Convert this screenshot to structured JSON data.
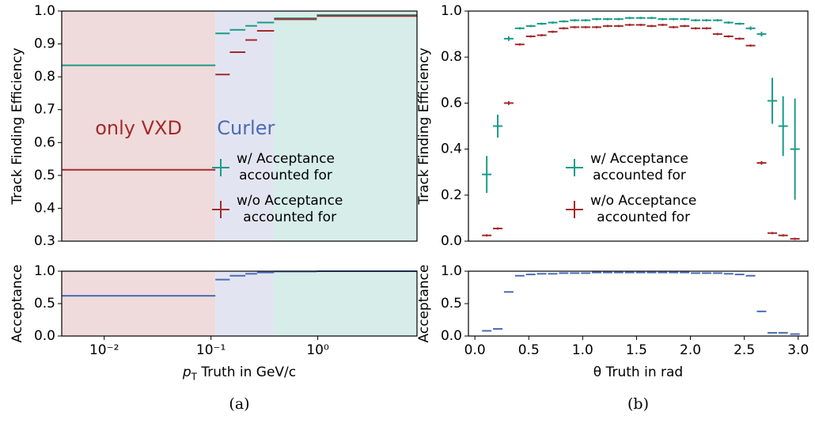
{
  "chart_data": [
    {
      "type": "histogram",
      "xscale": "log",
      "xlim": [
        0.004,
        8.5
      ],
      "ylim": [
        0.3,
        1.0
      ],
      "yticks": [
        0.3,
        0.4,
        0.5,
        0.6,
        0.7,
        0.8,
        0.9,
        {
          "value": 1.0,
          "label": "1.0"
        }
      ],
      "ylabel": "Track Finding Efficiency",
      "bins": [
        0.004,
        0.11,
        0.15,
        0.21,
        0.27,
        0.39,
        0.98,
        8.5
      ],
      "regions": [
        {
          "range": [
            0.004,
            0.11
          ],
          "color": "#efdbdb"
        },
        {
          "range": [
            0.11,
            0.39
          ],
          "color": "#e2e5f1"
        },
        {
          "range": [
            0.39,
            8.5
          ],
          "color": "#d6ede9"
        }
      ],
      "annotations": [
        {
          "text": "only VXD",
          "color": "#a52a2a"
        },
        {
          "text": "Curler",
          "color": "#4a6bb5"
        }
      ],
      "legend": "lower right",
      "series": [
        {
          "name": "w/   Acceptance\naccounted for",
          "color": "#1a9b86",
          "values": [
            0.835,
            0.932,
            0.943,
            0.955,
            0.965,
            0.978,
            0.988
          ]
        },
        {
          "name": "w/o Acceptance\naccounted for",
          "color": "#a52a2a",
          "values": [
            0.517,
            0.807,
            0.875,
            0.912,
            0.94,
            0.975,
            0.985
          ]
        }
      ]
    },
    {
      "type": "histogram",
      "xscale": "log",
      "xlim": [
        0.004,
        8.5
      ],
      "ylim": [
        0,
        1.0
      ],
      "yticks": [
        {
          "value": 0,
          "label": "0.0"
        },
        0.5,
        {
          "value": 1.0,
          "label": "1.0"
        }
      ],
      "xticks": [
        {
          "value": 0.01,
          "label": "10⁻²"
        },
        {
          "value": 0.1,
          "label": "10⁻¹"
        },
        {
          "value": 1,
          "label": "10⁰"
        }
      ],
      "ylabel": "Acceptance",
      "xlabel": {
        "symbol": "p",
        "subscript": "T",
        "text": " Truth in GeV/c"
      },
      "caption": "(a)",
      "bins": [
        0.004,
        0.11,
        0.15,
        0.21,
        0.27,
        0.39,
        0.98,
        8.5
      ],
      "regions": [
        {
          "range": [
            0.004,
            0.11
          ],
          "color": "#efdbdb"
        },
        {
          "range": [
            0.11,
            0.39
          ],
          "color": "#e2e5f1"
        },
        {
          "range": [
            0.39,
            8.5
          ],
          "color": "#d6ede9"
        }
      ],
      "series": [
        {
          "color": "#4a6bb5",
          "values": [
            0.62,
            0.87,
            0.93,
            0.96,
            0.98,
            0.995,
            1.0
          ]
        }
      ]
    },
    {
      "type": "errorbar",
      "xlim": [
        -0.06,
        3.09
      ],
      "ylim": [
        0,
        1.0
      ],
      "yticks": [
        {
          "value": 0,
          "label": "0.0"
        },
        0.2,
        0.4,
        0.6,
        0.8,
        {
          "value": 1.0,
          "label": "1.0"
        }
      ],
      "ylabel": "Track Finding Efficiency",
      "legend": "center",
      "x": [
        0.11,
        0.212,
        0.314,
        0.416,
        0.518,
        0.62,
        0.722,
        0.824,
        0.926,
        1.028,
        1.13,
        1.232,
        1.334,
        1.436,
        1.538,
        1.64,
        1.742,
        1.844,
        1.946,
        2.048,
        2.15,
        2.252,
        2.354,
        2.456,
        2.558,
        2.66,
        2.76,
        2.86,
        2.97
      ],
      "series": [
        {
          "name": "w/   Acceptance\naccounted for",
          "color": "#1a9b86",
          "values": [
            0.29,
            0.5,
            0.88,
            0.925,
            0.935,
            0.945,
            0.95,
            0.955,
            0.96,
            0.96,
            0.965,
            0.965,
            0.965,
            0.97,
            0.97,
            0.97,
            0.965,
            0.965,
            0.965,
            0.96,
            0.96,
            0.96,
            0.95,
            0.945,
            0.925,
            0.9,
            0.61,
            0.5,
            0.4
          ],
          "errors": [
            0.08,
            0.05,
            0.01,
            0.005,
            0.005,
            0.005,
            0.005,
            0.005,
            0.005,
            0.005,
            0.005,
            0.005,
            0.005,
            0.005,
            0.005,
            0.005,
            0.005,
            0.005,
            0.005,
            0.005,
            0.005,
            0.005,
            0.005,
            0.005,
            0.008,
            0.01,
            0.1,
            0.13,
            0.22
          ]
        },
        {
          "name": "w/o Acceptance\naccounted for",
          "color": "#a52a2a",
          "values": [
            0.025,
            0.055,
            0.6,
            0.855,
            0.89,
            0.895,
            0.91,
            0.925,
            0.93,
            0.93,
            0.93,
            0.935,
            0.935,
            0.94,
            0.94,
            0.935,
            0.94,
            0.93,
            0.935,
            0.925,
            0.925,
            0.9,
            0.89,
            0.88,
            0.85,
            0.34,
            0.035,
            0.025,
            0.01
          ],
          "errors": [
            0.005,
            0.005,
            0.008,
            0.005,
            0.005,
            0.005,
            0.005,
            0.005,
            0.005,
            0.005,
            0.005,
            0.005,
            0.005,
            0.005,
            0.005,
            0.005,
            0.005,
            0.005,
            0.005,
            0.005,
            0.005,
            0.005,
            0.005,
            0.005,
            0.005,
            0.008,
            0.005,
            0.005,
            0.005
          ]
        }
      ]
    },
    {
      "type": "errorbar",
      "xlim": [
        -0.06,
        3.09
      ],
      "ylim": [
        0,
        1.0
      ],
      "yticks": [
        {
          "value": 0,
          "label": "0.0"
        },
        0.5,
        {
          "value": 1.0,
          "label": "1.0"
        }
      ],
      "xticks": [
        {
          "value": 0,
          "label": "0.0"
        },
        0.5,
        {
          "value": 1.0,
          "label": "1.0"
        },
        1.5,
        {
          "value": 2.0,
          "label": "2.0"
        },
        2.5,
        {
          "value": 3.0,
          "label": "3.0"
        }
      ],
      "ylabel": "Acceptance",
      "xlabel": {
        "text": "θ Truth in rad"
      },
      "caption": "(b)",
      "x": [
        0.11,
        0.212,
        0.314,
        0.416,
        0.518,
        0.62,
        0.722,
        0.824,
        0.926,
        1.028,
        1.13,
        1.232,
        1.334,
        1.436,
        1.538,
        1.64,
        1.742,
        1.844,
        1.946,
        2.048,
        2.15,
        2.252,
        2.354,
        2.456,
        2.558,
        2.66,
        2.76,
        2.86,
        2.97
      ],
      "series": [
        {
          "color": "#4a6bb5",
          "values": [
            0.08,
            0.11,
            0.68,
            0.93,
            0.95,
            0.96,
            0.96,
            0.97,
            0.97,
            0.97,
            0.98,
            0.98,
            0.98,
            0.98,
            0.98,
            0.98,
            0.98,
            0.98,
            0.98,
            0.97,
            0.97,
            0.97,
            0.96,
            0.95,
            0.93,
            0.38,
            0.05,
            0.05,
            0.03
          ]
        }
      ]
    }
  ]
}
